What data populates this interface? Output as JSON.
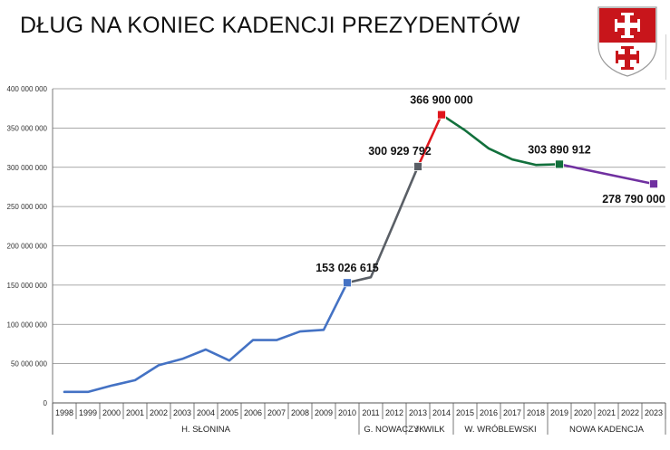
{
  "header": {
    "title": "DŁUG NA KONIEC KADENCJI PREZYDENTÓW"
  },
  "crest": {
    "name": "elblag-coat-of-arms",
    "colors": {
      "red": "#c8151b",
      "white": "#ffffff"
    }
  },
  "chart_data": {
    "type": "line",
    "title": "DŁUG NA KONIEC KADENCJI PREZYDENTÓW",
    "xlabel": "",
    "ylabel": "",
    "x": [
      "1998",
      "1999",
      "2000",
      "2001",
      "2002",
      "2003",
      "2004",
      "2005",
      "2006",
      "2007",
      "2008",
      "2009",
      "2010",
      "2011",
      "2012",
      "2013",
      "2014",
      "2015",
      "2016",
      "2017",
      "2018",
      "2019",
      "2020",
      "2021",
      "2022",
      "2023"
    ],
    "ylim": [
      0,
      400000000
    ],
    "yticks": [
      0,
      50000000,
      100000000,
      150000000,
      200000000,
      250000000,
      300000000,
      350000000,
      400000000
    ],
    "ytick_labels": [
      "0",
      "50 000 000",
      "100 000 000",
      "150 000 000",
      "200 000 000",
      "250 000 000",
      "300 000 000",
      "350 000 000",
      "400 000 000"
    ],
    "grid": "horizontal",
    "legend": "none",
    "series": [
      {
        "color": "#4472c4",
        "points": [
          [
            "1998",
            14000000
          ],
          [
            "1999",
            14000000
          ],
          [
            "2000",
            22000000
          ],
          [
            "2001",
            29000000
          ],
          [
            "2002",
            48000000
          ],
          [
            "2003",
            56000000
          ],
          [
            "2004",
            68000000
          ],
          [
            "2005",
            54000000
          ],
          [
            "2006",
            80000000
          ],
          [
            "2007",
            80000000
          ],
          [
            "2008",
            91000000
          ],
          [
            "2009",
            93000000
          ],
          [
            "2010",
            153026615
          ]
        ]
      },
      {
        "color": "#5a5f66",
        "points": [
          [
            "2010",
            153026615
          ],
          [
            "2011",
            160000000
          ],
          [
            "2012",
            230000000
          ],
          [
            "2013",
            300929792
          ]
        ]
      },
      {
        "color": "#e0161c",
        "points": [
          [
            "2013",
            300929792
          ],
          [
            "2014",
            366900000
          ]
        ]
      },
      {
        "color": "#12703c",
        "points": [
          [
            "2014",
            366900000
          ],
          [
            "2015",
            347000000
          ],
          [
            "2016",
            324000000
          ],
          [
            "2017",
            310000000
          ],
          [
            "2018",
            303000000
          ],
          [
            "2019",
            303890912
          ]
        ]
      },
      {
        "color": "#7030a0",
        "points": [
          [
            "2019",
            303890912
          ],
          [
            "2023",
            278790000
          ]
        ]
      }
    ],
    "markers": [
      {
        "x": "2010",
        "y": 153026615,
        "color": "#4472c4"
      },
      {
        "x": "2013",
        "y": 300929792,
        "color": "#5a5f66"
      },
      {
        "x": "2014",
        "y": 366900000,
        "color": "#e0161c"
      },
      {
        "x": "2019",
        "y": 303890912,
        "color": "#12703c"
      },
      {
        "x": "2023",
        "y": 278790000,
        "color": "#7030a0"
      }
    ],
    "annotations": [
      {
        "text": "153 026 615",
        "x": "2010",
        "y": 153026615,
        "placement": "above"
      },
      {
        "text": "300 929 792",
        "x": "2013",
        "y": 300929792,
        "placement": "above-left"
      },
      {
        "text": "366 900 000",
        "x": "2014",
        "y": 366900000,
        "placement": "above"
      },
      {
        "text": "303 890 912",
        "x": "2019",
        "y": 303890912,
        "placement": "above"
      },
      {
        "text": "278 790 000",
        "x": "2023",
        "y": 278790000,
        "placement": "below-left"
      }
    ],
    "terms": [
      {
        "label": "H. SŁONINA",
        "from": "1998",
        "to": "2010"
      },
      {
        "label": "G. NOWACZYK",
        "from": "2011",
        "to": "2013"
      },
      {
        "label": "J. WILK",
        "from": "2013",
        "to": "2014"
      },
      {
        "label": "W. WRÓBLEWSKI",
        "from": "2015",
        "to": "2018"
      },
      {
        "label": "NOWA KADENCJA",
        "from": "2019",
        "to": "2023"
      }
    ]
  }
}
